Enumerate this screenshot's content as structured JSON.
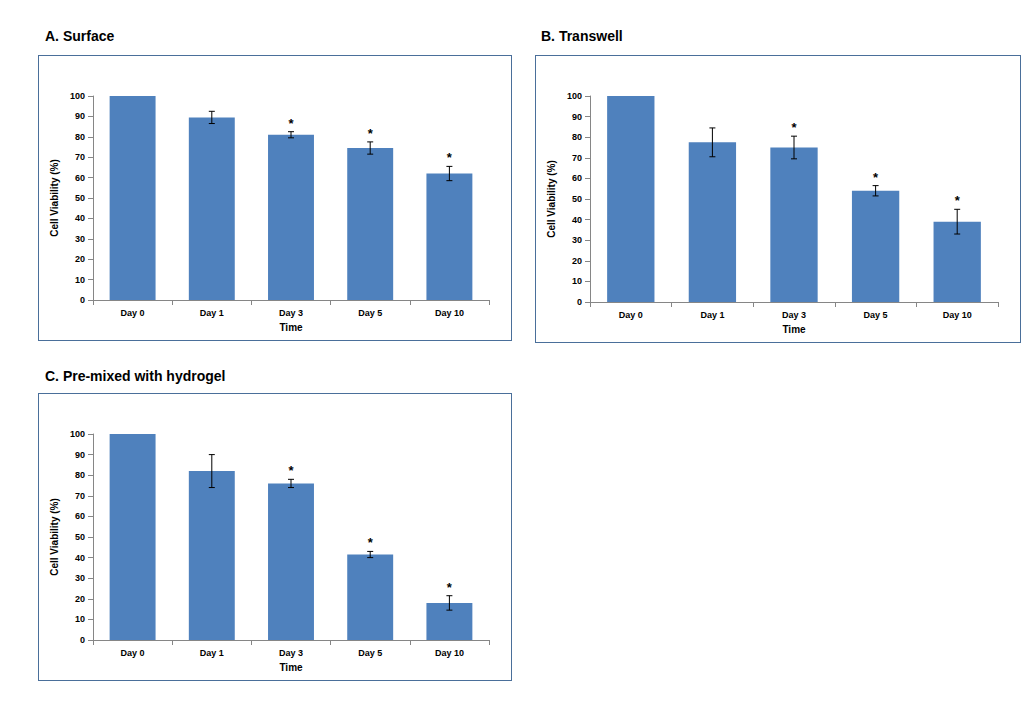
{
  "chart_data": [
    {
      "type": "bar",
      "title": "A. Surface",
      "x_label": "Time",
      "y_label": "Cell Viability (%)",
      "categories": [
        "Day 0",
        "Day 1",
        "Day 3",
        "Day 5",
        "Day 10"
      ],
      "values": [
        100,
        89.5,
        81,
        74.5,
        62
      ],
      "errors": [
        null,
        3,
        1.5,
        3,
        3.5
      ],
      "annotations": [
        null,
        null,
        "*",
        "*",
        "*"
      ],
      "color": "#4f81bd",
      "ylim": [
        0,
        100
      ],
      "yticks": [
        0,
        10,
        20,
        30,
        40,
        50,
        60,
        70,
        80,
        90,
        100
      ],
      "grid": false
    },
    {
      "type": "bar",
      "title": "B. Transwell",
      "x_label": "Time",
      "y_label": "Cell Viability (%)",
      "categories": [
        "Day 0",
        "Day 1",
        "Day 3",
        "Day 5",
        "Day 10"
      ],
      "values": [
        100,
        77.5,
        75,
        54,
        39
      ],
      "errors": [
        null,
        7,
        5.5,
        2.5,
        6
      ],
      "annotations": [
        null,
        null,
        "*",
        "*",
        "*"
      ],
      "color": "#4f81bd",
      "ylim": [
        0,
        100
      ],
      "yticks": [
        0,
        10,
        20,
        30,
        40,
        50,
        60,
        70,
        80,
        90,
        100
      ],
      "grid": false
    },
    {
      "type": "bar",
      "title": "C. Pre-mixed with hydrogel",
      "x_label": "Time",
      "y_label": "Cell Viability (%)",
      "categories": [
        "Day 0",
        "Day 1",
        "Day 3",
        "Day 5",
        "Day 10"
      ],
      "values": [
        100,
        82,
        76,
        41.5,
        18
      ],
      "errors": [
        null,
        8,
        2,
        1.5,
        3.5
      ],
      "annotations": [
        null,
        null,
        "*",
        "*",
        "*"
      ],
      "color": "#4f81bd",
      "ylim": [
        0,
        100
      ],
      "yticks": [
        0,
        10,
        20,
        30,
        40,
        50,
        60,
        70,
        80,
        90,
        100
      ],
      "grid": false
    }
  ]
}
